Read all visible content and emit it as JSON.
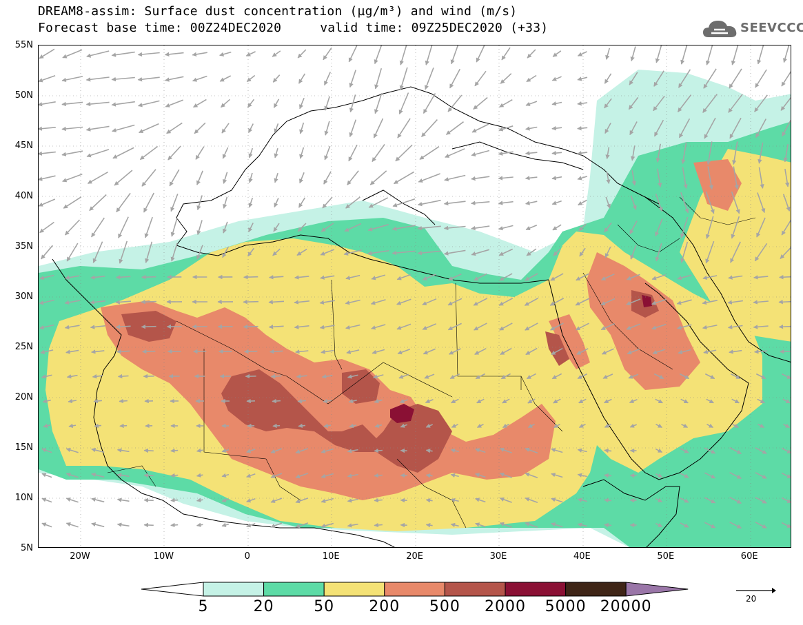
{
  "header": {
    "title_line1": "DREAM8-assim: Surface dust concentration (µg/m³) and wind (m/s)",
    "title_line2_left": "Forecast base time: 00Z24DEC2020",
    "title_line2_right": "valid time: 09Z25DEC2020 (+33)"
  },
  "logo": {
    "text": "SEEVCCC",
    "icon": "cloud-icon",
    "color": "#6d6d6d"
  },
  "map": {
    "lon_range": [
      -25,
      65
    ],
    "lat_range": [
      5,
      55
    ],
    "lat_labels": [
      "55N",
      "50N",
      "45N",
      "40N",
      "35N",
      "30N",
      "25N",
      "20N",
      "15N",
      "10N",
      "5N"
    ],
    "lon_labels": [
      "20W",
      "10W",
      "0",
      "10E",
      "20E",
      "30E",
      "40E",
      "50E",
      "60E"
    ],
    "wind_arrow_color": "#a5a5a5"
  },
  "colorbar": {
    "labels": [
      "5",
      "20",
      "50",
      "200",
      "500",
      "2000",
      "5000",
      "20000"
    ],
    "colors": [
      "#ffffff",
      "#c5f2e6",
      "#5ddba6",
      "#f4e276",
      "#e8896a",
      "#b4554a",
      "#8a1034",
      "#3f2517",
      "#9a76a8"
    ]
  },
  "wind_reference": {
    "label": "20",
    "icon": "arrow-right-icon"
  }
}
